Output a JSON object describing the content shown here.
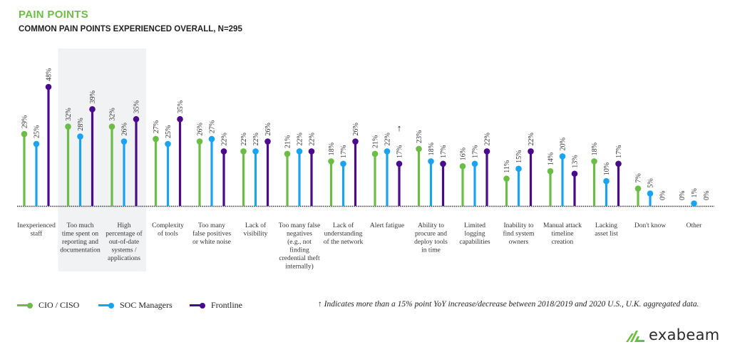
{
  "header": {
    "title": "PAIN POINTS",
    "subtitle": "COMMON PAIN POINTS EXPERIENCED OVERALL, N=295"
  },
  "colors": {
    "cio": "#6cbd45",
    "soc": "#1aa3f0",
    "frontline": "#4a0a8c",
    "highlight": "#f1f2f4"
  },
  "legend": [
    {
      "label": "CIO / CISO",
      "color": "#6cbd45"
    },
    {
      "label": "SOC Managers",
      "color": "#1aa3f0"
    },
    {
      "label": "Frontline",
      "color": "#4a0a8c"
    }
  ],
  "note": {
    "icon": "arrow-up-icon",
    "text": "Indicates more than a 15% point YoY increase/decrease between 2018/2019 and 2020 U.S., U.K. aggregated data."
  },
  "logo": {
    "text": "exabeam"
  },
  "chart_data": {
    "type": "lollipop",
    "title": "COMMON PAIN POINTS EXPERIENCED OVERALL, N=295",
    "ylim": [
      0,
      50
    ],
    "unit": "%",
    "highlighted_categories": [
      1,
      2
    ],
    "yoy_flag": {
      "category": 8,
      "series": "Frontline",
      "direction": "up"
    },
    "categories": [
      [
        "Inexperienced",
        "staff"
      ],
      [
        "Too much",
        "time spent on",
        "reporting and",
        "documentation"
      ],
      [
        "High",
        "percentage of",
        "out-of-date",
        "systems /",
        "applications"
      ],
      [
        "Complexity",
        "of tools"
      ],
      [
        "Too many",
        "false positives",
        "or white noise"
      ],
      [
        "Lack of",
        "visibility"
      ],
      [
        "Too many false",
        "negatives",
        "(e.g., not",
        "finding",
        "credential theft",
        "internally)"
      ],
      [
        "Lack of",
        "understanding",
        "of the network"
      ],
      [
        "Alert fatigue"
      ],
      [
        "Ability to",
        "procure and",
        "deploy tools",
        "in time"
      ],
      [
        "Limited",
        "logging",
        "capabilities"
      ],
      [
        "Inability to",
        "find system",
        "owners"
      ],
      [
        "Manual attack",
        "timeline",
        "creation"
      ],
      [
        "Lacking",
        "asset list"
      ],
      [
        "Don't know"
      ],
      [
        "Other"
      ]
    ],
    "series": [
      {
        "name": "CIO / CISO",
        "values": [
          29,
          32,
          32,
          27,
          26,
          22,
          21,
          18,
          21,
          23,
          16,
          11,
          14,
          18,
          7,
          0
        ]
      },
      {
        "name": "SOC Managers",
        "values": [
          25,
          28,
          26,
          25,
          27,
          22,
          22,
          17,
          22,
          18,
          17,
          15,
          20,
          10,
          5,
          1
        ]
      },
      {
        "name": "Frontline",
        "values": [
          48,
          39,
          35,
          35,
          22,
          26,
          22,
          26,
          17,
          17,
          22,
          22,
          13,
          17,
          0,
          0
        ]
      }
    ]
  }
}
